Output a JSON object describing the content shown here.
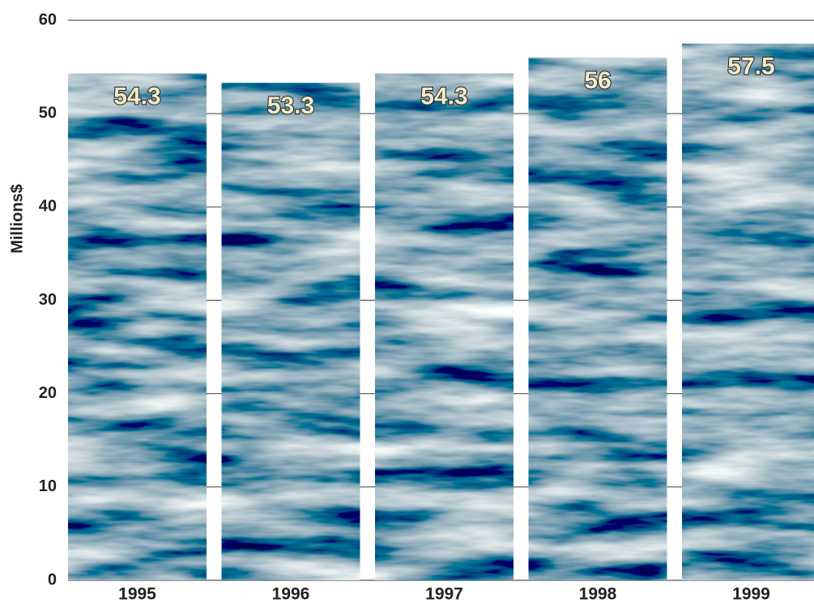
{
  "chart_data": {
    "type": "bar",
    "y_label": "Millions$",
    "categories": [
      "1995",
      "1996",
      "1997",
      "1998",
      "1999"
    ],
    "values": [
      54.3,
      53.3,
      54.3,
      56,
      57.5
    ],
    "ylim": [
      0,
      60
    ],
    "yticks": [
      0,
      10,
      20,
      30,
      40,
      50,
      60
    ],
    "grid": true
  }
}
